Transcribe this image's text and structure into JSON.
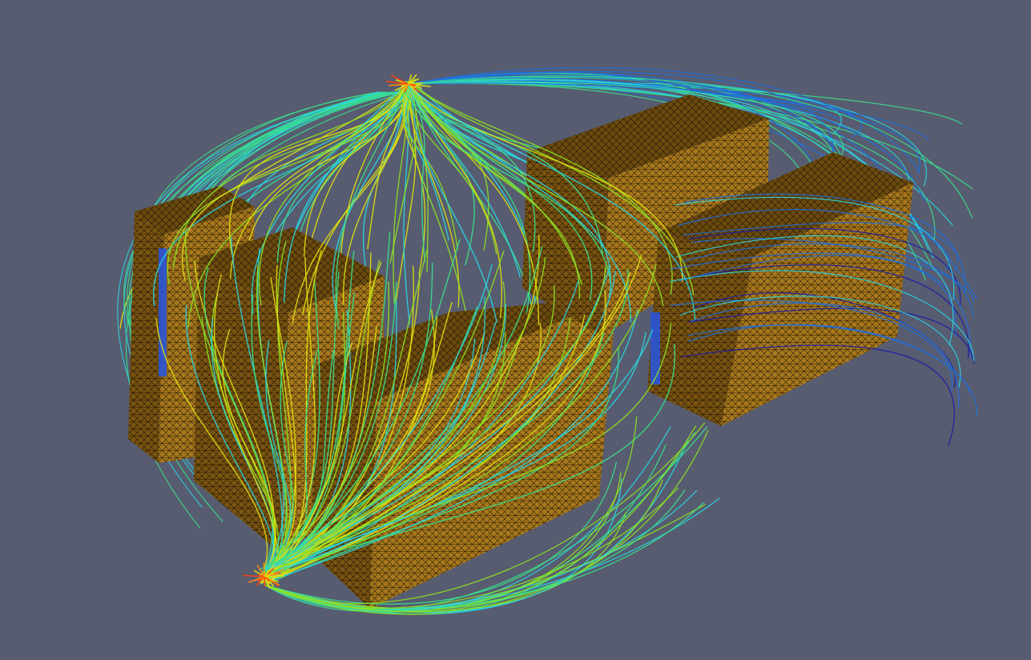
{
  "scene": {
    "background_color": "#575c70",
    "mesh_color": "#a9781c",
    "mesh_edge_color": "#2a1d08",
    "magnet_color": "#2a55d8",
    "colormap": [
      "#1a1aa8",
      "#1e6fe0",
      "#2ad4e0",
      "#3ae08a",
      "#8ee022",
      "#e0e010",
      "#ff8a10",
      "#ff4010"
    ]
  }
}
